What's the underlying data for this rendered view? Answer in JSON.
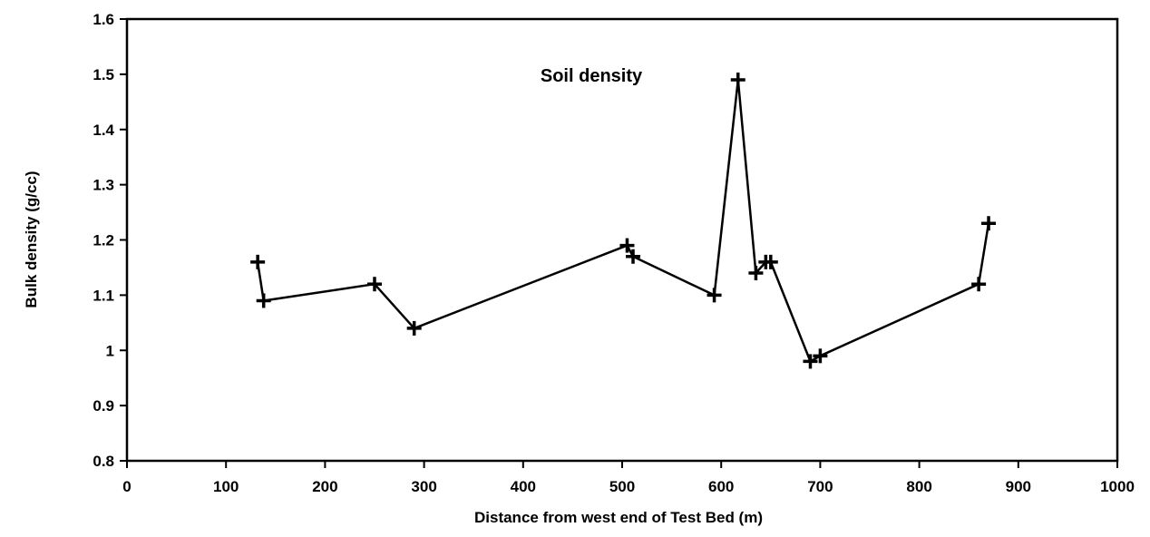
{
  "chart_data": {
    "type": "line",
    "title": "Soil density",
    "xlabel": "Distance from west end of Test Bed (m)",
    "ylabel": "Bulk density (g/cc)",
    "xlim": [
      0,
      1000
    ],
    "ylim": [
      0.8,
      1.6
    ],
    "x_ticks": [
      0,
      100,
      200,
      300,
      400,
      500,
      600,
      700,
      800,
      900,
      1000
    ],
    "y_ticks": [
      0.8,
      0.9,
      1.0,
      1.1,
      1.2,
      1.3,
      1.4,
      1.5,
      1.6
    ],
    "x_tick_labels": [
      "0",
      "100",
      "200",
      "300",
      "400",
      "500",
      "600",
      "700",
      "800",
      "900",
      "1000"
    ],
    "y_tick_labels": [
      "0.8",
      "0.9",
      "1",
      "1.1",
      "1.2",
      "1.3",
      "1.4",
      "1.5",
      "1.6"
    ],
    "grid": false,
    "legend": "none",
    "marker": "plus",
    "line_color": "#000000",
    "series": [
      {
        "x": [
          132,
          138,
          250,
          290,
          505,
          511,
          593,
          617,
          635,
          645,
          650,
          690,
          700,
          860,
          870
        ],
        "y": [
          1.16,
          1.09,
          1.12,
          1.04,
          1.19,
          1.17,
          1.1,
          1.49,
          1.14,
          1.16,
          1.16,
          0.98,
          0.99,
          1.12,
          1.23
        ]
      }
    ]
  }
}
